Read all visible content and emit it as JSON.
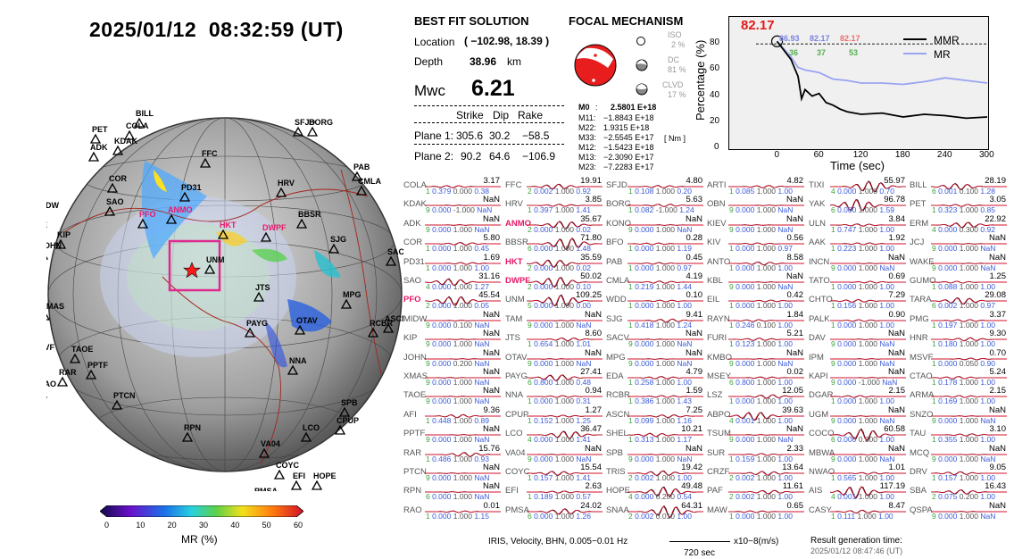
{
  "datetime": "2025/01/12  08:32:59 (UT)",
  "solution": {
    "title": "BEST FIT SOLUTION",
    "location_label": "Location",
    "location_value": "( −102.98,  18.39 )",
    "depth_label": "Depth",
    "depth_value": "38.96",
    "depth_unit": "km",
    "mw_label": "Mwc",
    "mw_value": "6.21",
    "col_strike": "Strike",
    "col_dip": "Dip",
    "col_rake": "Rake",
    "plane1_label": "Plane 1:",
    "plane1": [
      "305.6",
      "30.2",
      "−58.5"
    ],
    "plane2_label": "Plane 2:",
    "plane2": [
      "90.2",
      "64.6",
      "−106.9"
    ]
  },
  "focal": {
    "title": "FOCAL MECHANISM",
    "iso_label": "ISO",
    "iso_value": "2 %",
    "dc_label": "DC",
    "dc_value": "81 %",
    "clvd_label": "CLVD",
    "clvd_value": "17 %",
    "m0_label": "M0",
    "m0_value": "2.5801 E+18",
    "tensor": [
      {
        "k": "M11:",
        "v": "−1.8843 E+18"
      },
      {
        "k": "M22:",
        "v": "1.9315 E+18"
      },
      {
        "k": "M33:",
        "v": "−2.5545 E+17"
      },
      {
        "k": "M12:",
        "v": "−1.5423 E+18"
      },
      {
        "k": "M13:",
        "v": "−2.3090 E+17"
      },
      {
        "k": "M23:",
        "v": "−7.2283 E+17"
      }
    ],
    "unit": "[ Nm ]"
  },
  "percentage_plot": {
    "peak_label": "82.17",
    "ylabel": "Percentage (%)",
    "xlabel": "Time (sec)",
    "legend_mmr": "MMR",
    "legend_mr": "MR",
    "stats_row1": [
      "86.93",
      "82.17",
      "82.17"
    ],
    "stats_row2": [
      "36",
      "37",
      "53"
    ],
    "yticks": [
      "0",
      "20",
      "40",
      "60",
      "80"
    ],
    "xticks": [
      "0",
      "60",
      "120",
      "180",
      "240",
      "300"
    ]
  },
  "chart_data": {
    "type": "line",
    "xlabel": "Time (sec)",
    "ylabel": "Percentage (%)",
    "xlim": [
      -30,
      300
    ],
    "ylim": [
      0,
      100
    ],
    "threshold": 80,
    "series": [
      {
        "name": "MMR",
        "x": [
          0,
          10,
          20,
          30,
          35,
          40,
          50,
          60,
          70,
          80,
          90,
          100,
          120,
          150,
          180,
          210,
          240,
          270,
          300
        ],
        "y": [
          82,
          75,
          68,
          55,
          38,
          45,
          40,
          42,
          35,
          33,
          30,
          28,
          26,
          27,
          24,
          26,
          25,
          23,
          24
        ]
      },
      {
        "name": "MR",
        "x": [
          0,
          10,
          20,
          30,
          40,
          60,
          80,
          100,
          120,
          150,
          180,
          210,
          240,
          270,
          300
        ],
        "y": [
          82,
          76,
          70,
          62,
          60,
          58,
          53,
          52,
          50,
          50,
          49,
          51,
          54,
          52,
          50
        ]
      }
    ]
  },
  "stations": [
    [
      "COLA",
      "3.17",
      "1",
      "0.379",
      "0.000",
      "0.38",
      "0"
    ],
    [
      "FFC",
      "19.91",
      "2",
      "0.002",
      "1.000",
      "0.92",
      "0"
    ],
    [
      "SFJD",
      "4.80",
      "1",
      "0.108",
      "1.000",
      "0.20",
      "0"
    ],
    [
      "ARTI",
      "4.82",
      "1",
      "0.085",
      "1.000",
      "1.00",
      "0"
    ],
    [
      "TIXI",
      "55.97",
      "4",
      "0.000",
      "1.000",
      "0.70",
      "0"
    ],
    [
      "BILL",
      "28.19",
      "6",
      "0.001",
      "0.100",
      "1.28",
      "0"
    ],
    [
      "KDAK",
      "NaN",
      "9",
      "0.000",
      "-1.000",
      "NaN",
      "0"
    ],
    [
      "HRV",
      "3.85",
      "1",
      "0.397",
      "1.000",
      "1.41",
      "0"
    ],
    [
      "BORG",
      "5.63",
      "1",
      "0.082",
      "-1.000",
      "1.24",
      "0"
    ],
    [
      "OBN",
      "NaN",
      "9",
      "0.000",
      "1.000",
      "NaN",
      "0"
    ],
    [
      "YAK",
      "96.78",
      "6",
      "0.000",
      "1.000",
      "1.59",
      "0"
    ],
    [
      "PET",
      "3.05",
      "1",
      "0.323",
      "1.000",
      "0.85",
      "0"
    ],
    [
      "ADK",
      "NaN",
      "9",
      "0.000",
      "1.000",
      "NaN",
      "0"
    ],
    [
      "ANMO",
      "35.67",
      "2",
      "0.000",
      "1.000",
      "0.02",
      "1"
    ],
    [
      "KONO",
      "NaN",
      "9",
      "0.000",
      "1.000",
      "NaN",
      "0"
    ],
    [
      "KIEV",
      "NaN",
      "9",
      "0.000",
      "1.000",
      "NaN",
      "0"
    ],
    [
      "ULN",
      "3.84",
      "1",
      "0.747",
      "1.000",
      "1.00",
      "0"
    ],
    [
      "ERM",
      "22.92",
      "4",
      "0.000",
      "0.300",
      "0.92",
      "0"
    ],
    [
      "COR",
      "5.80",
      "1",
      "0.000",
      "1.000",
      "0.45",
      "0"
    ],
    [
      "BBSR",
      "71.80",
      "6",
      "0.000",
      "1.000",
      "1.48",
      "0"
    ],
    [
      "BFO",
      "0.28",
      "1",
      "0.000",
      "1.000",
      "1.19",
      "0"
    ],
    [
      "KIV",
      "0.56",
      "1",
      "0.000",
      "1.000",
      "0.97",
      "0"
    ],
    [
      "AAK",
      "1.92",
      "1",
      "0.223",
      "1.000",
      "1.00",
      "0"
    ],
    [
      "JCJ",
      "NaN",
      "9",
      "0.000",
      "1.000",
      "NaN",
      "0"
    ],
    [
      "PD31",
      "1.69",
      "1",
      "0.000",
      "1.000",
      "1.00",
      "0"
    ],
    [
      "HKT",
      "35.59",
      "2",
      "0.000",
      "1.000",
      "0.02",
      "1"
    ],
    [
      "PAB",
      "0.45",
      "1",
      "0.000",
      "1.000",
      "0.97",
      "0"
    ],
    [
      "ANTO",
      "8.58",
      "1",
      "0.000",
      "1.000",
      "1.00",
      "0"
    ],
    [
      "INCN",
      "NaN",
      "9",
      "0.000",
      "1.000",
      "NaN",
      "0"
    ],
    [
      "WAKE",
      "NaN",
      "9",
      "0.000",
      "1.000",
      "NaN",
      "0"
    ],
    [
      "SAO",
      "31.16",
      "4",
      "0.000",
      "1.000",
      "1.27",
      "0"
    ],
    [
      "DWPF",
      "50.02",
      "2",
      "0.000",
      "1.000",
      "0.10",
      "1"
    ],
    [
      "CMLA",
      "4.19",
      "1",
      "0.219",
      "1.000",
      "1.44",
      "0"
    ],
    [
      "KBL",
      "NaN",
      "9",
      "0.000",
      "1.000",
      "NaN",
      "0"
    ],
    [
      "TATO",
      "0.69",
      "1",
      "0.000",
      "1.000",
      "1.00",
      "0"
    ],
    [
      "GUMO",
      "1.25",
      "1",
      "0.088",
      "1.000",
      "1.00",
      "0"
    ],
    [
      "PFO",
      "45.54",
      "2",
      "0.000",
      "1.000",
      "0.05",
      "1"
    ],
    [
      "UNM",
      "109.25",
      "5",
      "0.000",
      "1.000",
      "0.00",
      "0"
    ],
    [
      "WDD",
      "0.10",
      "1",
      "0.000",
      "1.000",
      "1.00",
      "0"
    ],
    [
      "EIL",
      "0.42",
      "1",
      "0.000",
      "1.000",
      "1.00",
      "0"
    ],
    [
      "CHTO",
      "7.29",
      "1",
      "0.156",
      "1.000",
      "1.00",
      "0"
    ],
    [
      "TARA",
      "29.08",
      "6",
      "0.002",
      "1.000",
      "0.97",
      "0"
    ],
    [
      "MIDW",
      "NaN",
      "9",
      "0.000",
      "0.100",
      "NaN",
      "0"
    ],
    [
      "TAM",
      "NaN",
      "9",
      "0.000",
      "1.000",
      "NaN",
      "0"
    ],
    [
      "SJG",
      "9.41",
      "1",
      "0.418",
      "1.000",
      "1.24",
      "0"
    ],
    [
      "RAYN",
      "1.84",
      "1",
      "0.246",
      "0.100",
      "1.00",
      "0"
    ],
    [
      "PALK",
      "0.90",
      "1",
      "0.000",
      "1.000",
      "1.00",
      "0"
    ],
    [
      "PMG",
      "3.37",
      "1",
      "0.197",
      "1.000",
      "1.00",
      "0"
    ],
    [
      "KIP",
      "NaN",
      "9",
      "0.000",
      "1.000",
      "NaN",
      "0"
    ],
    [
      "JTS",
      "8.60",
      "1",
      "0.654",
      "1.000",
      "1.01",
      "0"
    ],
    [
      "SACV",
      "NaN",
      "9",
      "0.000",
      "1.000",
      "NaN",
      "0"
    ],
    [
      "FURI",
      "5.21",
      "1",
      "0.123",
      "1.000",
      "1.00",
      "0"
    ],
    [
      "DAV",
      "NaN",
      "9",
      "0.000",
      "1.000",
      "NaN",
      "0"
    ],
    [
      "HNR",
      "9.30",
      "1",
      "0.180",
      "1.000",
      "1.00",
      "0"
    ],
    [
      "JOHN",
      "NaN",
      "9",
      "0.000",
      "0.200",
      "NaN",
      "0"
    ],
    [
      "OTAV",
      "NaN",
      "9",
      "0.000",
      "1.000",
      "NaN",
      "0"
    ],
    [
      "MPG",
      "NaN",
      "9",
      "0.000",
      "1.000",
      "NaN",
      "0"
    ],
    [
      "KMBO",
      "NaN",
      "9",
      "0.000",
      "1.000",
      "NaN",
      "0"
    ],
    [
      "IPM",
      "NaN",
      "9",
      "0.000",
      "1.000",
      "NaN",
      "0"
    ],
    [
      "MSVF",
      "0.70",
      "1",
      "0.000",
      "0.050",
      "0.90",
      "0"
    ],
    [
      "XMAS",
      "NaN",
      "9",
      "0.000",
      "1.000",
      "NaN",
      "0"
    ],
    [
      "PAYG",
      "27.41",
      "6",
      "0.800",
      "1.000",
      "0.48",
      "0"
    ],
    [
      "EDA",
      "4.79",
      "1",
      "0.258",
      "1.000",
      "1.00",
      "0"
    ],
    [
      "MSEY",
      "0.02",
      "6",
      "0.800",
      "1.000",
      "1.00",
      "0"
    ],
    [
      "KAPI",
      "NaN",
      "9",
      "0.000",
      "-1.000",
      "NaN",
      "0"
    ],
    [
      "CTAO",
      "5.24",
      "1",
      "0.178",
      "1.000",
      "1.00",
      "0"
    ],
    [
      "TAOE",
      "NaN",
      "9",
      "0.000",
      "1.000",
      "NaN",
      "0"
    ],
    [
      "NNA",
      "0.94",
      "1",
      "0.000",
      "1.000",
      "0.31",
      "0"
    ],
    [
      "RCBR",
      "1.59",
      "1",
      "0.386",
      "1.000",
      "1.43",
      "0"
    ],
    [
      "LSZ",
      "12.05",
      "1",
      "0.000",
      "1.000",
      "1.00",
      "0"
    ],
    [
      "DGAR",
      "2.15",
      "1",
      "0.000",
      "1.000",
      "1.00",
      "0"
    ],
    [
      "ARMA",
      "2.15",
      "1",
      "0.169",
      "1.000",
      "1.00",
      "0"
    ],
    [
      "AFI",
      "9.36",
      "1",
      "0.448",
      "1.000",
      "0.89",
      "0"
    ],
    [
      "CPUP",
      "1.27",
      "1",
      "0.152",
      "1.000",
      "1.25",
      "0"
    ],
    [
      "ASCN",
      "7.25",
      "1",
      "0.099",
      "1.000",
      "1.16",
      "0"
    ],
    [
      "ABPO",
      "39.63",
      "4",
      "0.001",
      "1.000",
      "1.00",
      "0"
    ],
    [
      "UGM",
      "NaN",
      "9",
      "0.000",
      "1.000",
      "NaN",
      "0"
    ],
    [
      "SNZO",
      "NaN",
      "9",
      "0.000",
      "1.000",
      "NaN",
      "0"
    ],
    [
      "PPTF",
      "NaN",
      "9",
      "0.000",
      "1.000",
      "NaN",
      "0"
    ],
    [
      "LCO",
      "36.47",
      "4",
      "0.000",
      "1.000",
      "1.41",
      "0"
    ],
    [
      "SHEL",
      "10.21",
      "1",
      "0.313",
      "1.000",
      "1.17",
      "0"
    ],
    [
      "TSUM",
      "NaN",
      "9",
      "0.000",
      "1.000",
      "NaN",
      "0"
    ],
    [
      "COCO",
      "60.58",
      "6",
      "0.000",
      "0.300",
      "1.00",
      "0"
    ],
    [
      "TAU",
      "3.10",
      "1",
      "0.355",
      "1.000",
      "1.00",
      "0"
    ],
    [
      "RAR",
      "15.76",
      "1",
      "0.486",
      "1.000",
      "0.93",
      "0"
    ],
    [
      "VA04",
      "NaN",
      "9",
      "0.000",
      "1.000",
      "NaN",
      "0"
    ],
    [
      "SPB",
      "NaN",
      "9",
      "0.000",
      "1.000",
      "NaN",
      "0"
    ],
    [
      "SUR",
      "2.33",
      "1",
      "0.159",
      "1.000",
      "1.00",
      "0"
    ],
    [
      "MBWA",
      "NaN",
      "9",
      "0.000",
      "1.000",
      "NaN",
      "0"
    ],
    [
      "MCQ",
      "NaN",
      "9",
      "0.000",
      "1.000",
      "NaN",
      "0"
    ],
    [
      "PTCN",
      "NaN",
      "9",
      "0.000",
      "1.000",
      "NaN",
      "0"
    ],
    [
      "COYC",
      "15.54",
      "1",
      "0.157",
      "1.000",
      "1.41",
      "0"
    ],
    [
      "TRIS",
      "19.42",
      "2",
      "0.002",
      "1.000",
      "1.00",
      "0"
    ],
    [
      "CRZF",
      "13.64",
      "2",
      "0.002",
      "1.000",
      "1.00",
      "0"
    ],
    [
      "NWAO",
      "1.01",
      "1",
      "0.565",
      "1.000",
      "1.00",
      "0"
    ],
    [
      "DRV",
      "9.05",
      "1",
      "0.157",
      "1.000",
      "1.00",
      "0"
    ],
    [
      "RPN",
      "NaN",
      "6",
      "0.000",
      "1.000",
      "NaN",
      "0"
    ],
    [
      "EFI",
      "2.63",
      "1",
      "0.189",
      "1.000",
      "0.57",
      "0"
    ],
    [
      "HOPE",
      "49.48",
      "4",
      "0.000",
      "0.200",
      "0.54",
      "0"
    ],
    [
      "PAF",
      "11.61",
      "2",
      "0.002",
      "1.000",
      "1.00",
      "0"
    ],
    [
      "AIS",
      "117.19",
      "4",
      "0.001",
      "1.000",
      "1.00",
      "0"
    ],
    [
      "SBA",
      "16.43",
      "2",
      "0.075",
      "0.200",
      "1.00",
      "0"
    ],
    [
      "RAO",
      "0.01",
      "1",
      "0.000",
      "1.000",
      "1.15",
      "0"
    ],
    [
      "PMSA",
      "24.02",
      "6",
      "0.000",
      "1.000",
      "1.26",
      "0"
    ],
    [
      "SNAA",
      "64.31",
      "2",
      "0.002",
      "0.010",
      "1.00",
      "0"
    ],
    [
      "MAW",
      "0.65",
      "1",
      "0.000",
      "1.000",
      "1.00",
      "0"
    ],
    [
      "CASY",
      "8.47",
      "1",
      "0.111",
      "1.000",
      "1.00",
      "0"
    ],
    [
      "QSPA",
      "NaN",
      "9",
      "0.000",
      "1.000",
      "NaN",
      "0"
    ]
  ],
  "map": {
    "station_labels": [
      "BILL",
      "PET",
      "COLA",
      "KDAK",
      "ADK",
      "SFJD",
      "BORG",
      "PAB",
      "CMLA",
      "FFC",
      "COR",
      "SAO",
      "PD31",
      "PFO",
      "ANMO",
      "HKT",
      "DWPF",
      "HRV",
      "BBSR",
      "MIDW",
      "WAKE",
      "KIP",
      "JOHN",
      "UNM",
      "SJG",
      "SACV",
      "TARA",
      "XMAS",
      "JTS",
      "MPG",
      "PAYG",
      "OTAV",
      "RCBR",
      "ASCN",
      "MSVF",
      "TAOE",
      "NNA",
      "PPTF",
      "RAR",
      "RAO",
      "SPB",
      "PTCN",
      "RPN",
      "LCO",
      "CPUP",
      "VA04",
      "COYC",
      "EFI",
      "HOPE",
      "PMSA"
    ],
    "colorbar_ticks": [
      "0",
      "10",
      "20",
      "30",
      "40",
      "50",
      "60"
    ],
    "colorbar_label": "MR (%)"
  },
  "footer": {
    "source": "IRIS, Velocity,  BHN, 0.005−0.01 Hz",
    "scale": "720 sec",
    "units": "x10−8(m/s)",
    "gen_label": "Result generation time:",
    "gen_value": "2025/01/12 08:47:46 (UT)"
  }
}
